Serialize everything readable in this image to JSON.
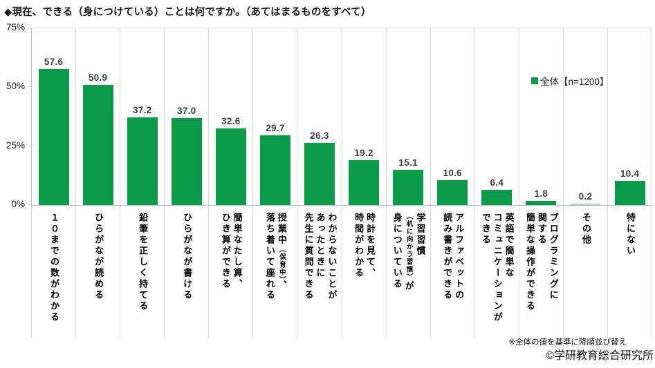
{
  "title": "◆現在、できる（身につけている）ことは何ですか。（あてはまるものをすべて）",
  "legend": {
    "label": "全体【n=1200】",
    "swatch_color": "#089b48"
  },
  "footnotes": {
    "sort_note": "※全体の値を基準に降順並び替え",
    "copyright": "©学研教育総合研究所"
  },
  "chart_data": {
    "type": "bar",
    "title": "◆現在、できる（身につけている）ことは何ですか。（あてはまるものをすべて）",
    "xlabel": "",
    "ylabel": "%",
    "ylim": [
      0,
      75
    ],
    "yticks": [
      {
        "value": 75,
        "label": "75%"
      },
      {
        "value": 50,
        "label": "50%"
      },
      {
        "value": 25,
        "label": "25%"
      },
      {
        "value": 0,
        "label": "0%"
      }
    ],
    "grid": "top-line-and-column-separators",
    "legend_position": "right-inside",
    "bar_color": "#089b48",
    "bar_color_light": "#aed9bd",
    "series_name": "全体【n=1200】",
    "categories": [
      "１０までの数がわかる",
      "ひらがなが読める",
      "鉛筆を正しく持てる",
      "ひらがなが書ける",
      "簡単なたし算、\nひき算ができる",
      "授業中（保育中）、\n落ち着いて座れる",
      "わからないことが\nあったときに\n先生に質問できる",
      "時計を見て、\n時間がわかる",
      "学習習慣\n（机に向かう習慣）が\n身についている",
      "アルファベットの\n読み書きができる",
      "英語で簡単な\nコミュニケーションが\nできる",
      "プログラミングに\n関する\n簡単な操作ができる",
      "その他",
      "特にない"
    ],
    "values": [
      57.6,
      50.9,
      37.2,
      37.0,
      32.6,
      29.7,
      26.3,
      19.2,
      15.1,
      10.6,
      6.4,
      1.8,
      0.2,
      10.4
    ]
  }
}
